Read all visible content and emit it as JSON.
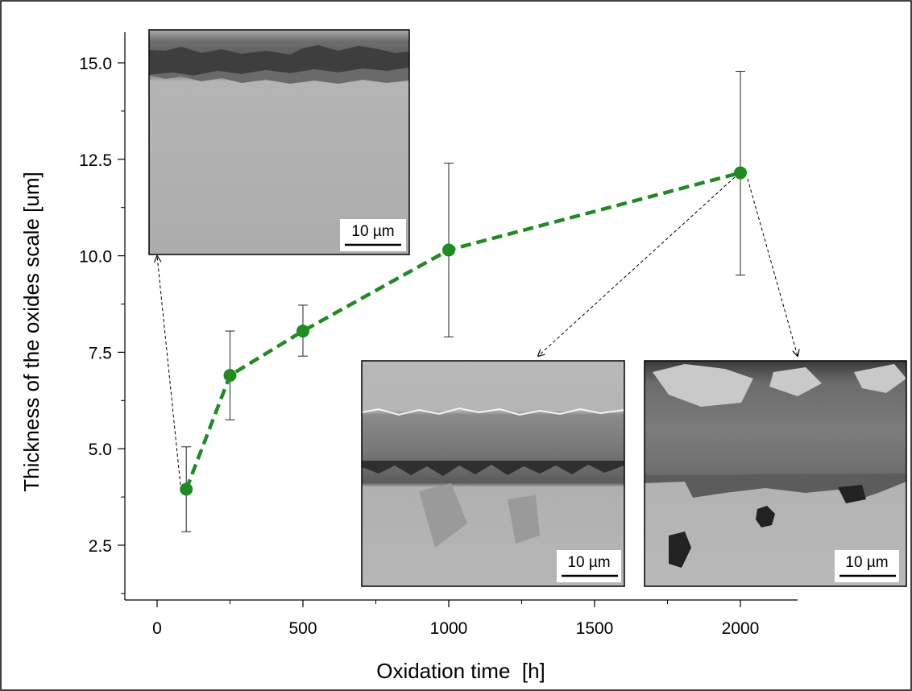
{
  "chart_data": {
    "type": "scatter",
    "title": "",
    "xlabel": "Oxidation time  [h]",
    "ylabel": "Thickness of the oxides scale [um]",
    "xlim": [
      -100,
      2200
    ],
    "ylim": [
      1.2,
      16.0
    ],
    "x_ticks": [
      0,
      500,
      1000,
      1500,
      2000
    ],
    "x_tick_labels": [
      "0",
      "500",
      "1000",
      "1500",
      "2000"
    ],
    "y_ticks": [
      2.5,
      5.0,
      7.5,
      10.0,
      12.5,
      15.0
    ],
    "y_tick_labels": [
      "2.5",
      "5.0",
      "7.5",
      "10.0",
      "12.5",
      "15.0"
    ],
    "grid": false,
    "series": [
      {
        "color": "#1e8c1e",
        "line_style": "dashed",
        "marker": "circle",
        "x": [
          100,
          250,
          500,
          1000,
          2000
        ],
        "y": [
          3.95,
          6.9,
          8.05,
          10.15,
          12.15
        ],
        "err_low": [
          2.85,
          5.75,
          7.4,
          7.9,
          9.5
        ],
        "err_high": [
          5.05,
          8.05,
          8.72,
          12.4,
          14.78
        ]
      }
    ],
    "insets": [
      {
        "name": "micrograph-100h",
        "scale_bar_label": "10 µm",
        "points_to_x": 100
      },
      {
        "name": "micrograph-1000h",
        "scale_bar_label": "10 µm",
        "points_to_x": 1000
      },
      {
        "name": "micrograph-2000h",
        "scale_bar_label": "10 µm",
        "points_to_x": 2000
      }
    ]
  }
}
